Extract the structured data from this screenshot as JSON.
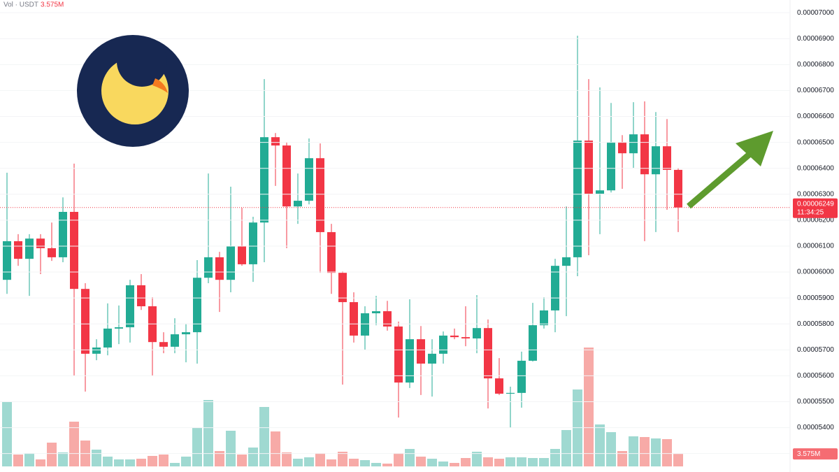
{
  "chart_data": {
    "type": "candlestick",
    "volume_title": "Vol · USDT",
    "up_color": "#22ab94",
    "down_color": "#f23645",
    "volume_up_color": "#9fd9d1",
    "volume_down_color": "#f7aaa7",
    "open": [
      5.97e-05,
      6.119e-05,
      6.051e-05,
      6.129e-05,
      6.092e-05,
      6.057e-05,
      6.232e-05,
      5.935e-05,
      5.685e-05,
      5.709e-05,
      5.782e-05,
      5.787e-05,
      5.949e-05,
      5.868e-05,
      5.73e-05,
      5.712e-05,
      5.76e-05,
      5.768e-05,
      5.978e-05,
      6.057e-05,
      5.97e-05,
      6.1e-05,
      6.03e-05,
      6.191e-05,
      6.52e-05,
      6.488e-05,
      6.253e-05,
      6.275e-05,
      6.439e-05,
      6.154e-05,
      5.997e-05,
      5.884e-05,
      5.755e-05,
      5.841e-05,
      5.849e-05,
      5.79e-05,
      5.574e-05,
      5.741e-05,
      5.647e-05,
      5.685e-05,
      5.755e-05,
      5.749e-05,
      5.744e-05,
      5.784e-05,
      5.59e-05,
      5.531e-05,
      5.534e-05,
      5.658e-05,
      5.795e-05,
      5.852e-05,
      6.024e-05,
      6.057e-05,
      6.507e-05,
      6.302e-05,
      6.315e-05,
      6.501e-05,
      6.458e-05,
      6.531e-05,
      6.377e-05,
      6.485e-05,
      6.394e-05
    ],
    "close": [
      6.119e-05,
      6.051e-05,
      6.129e-05,
      6.092e-05,
      6.057e-05,
      6.232e-05,
      5.935e-05,
      5.685e-05,
      5.709e-05,
      5.782e-05,
      5.787e-05,
      5.949e-05,
      5.868e-05,
      5.73e-05,
      5.712e-05,
      5.76e-05,
      5.768e-05,
      5.978e-05,
      6.057e-05,
      5.97e-05,
      6.1e-05,
      6.03e-05,
      6.191e-05,
      6.52e-05,
      6.488e-05,
      6.253e-05,
      6.275e-05,
      6.439e-05,
      6.154e-05,
      5.997e-05,
      5.884e-05,
      5.755e-05,
      5.841e-05,
      5.849e-05,
      5.79e-05,
      5.574e-05,
      5.741e-05,
      5.647e-05,
      5.685e-05,
      5.755e-05,
      5.749e-05,
      5.744e-05,
      5.784e-05,
      5.59e-05,
      5.531e-05,
      5.534e-05,
      5.658e-05,
      5.795e-05,
      5.852e-05,
      6.024e-05,
      6.057e-05,
      6.507e-05,
      6.302e-05,
      6.315e-05,
      6.501e-05,
      6.458e-05,
      6.531e-05,
      6.377e-05,
      6.485e-05,
      6.394e-05,
      6.249e-05
    ],
    "high": [
      6.383e-05,
      6.146e-05,
      6.146e-05,
      6.146e-05,
      6.191e-05,
      6.288e-05,
      6.418e-05,
      5.957e-05,
      5.741e-05,
      5.879e-05,
      5.871e-05,
      5.97e-05,
      5.992e-05,
      5.903e-05,
      5.768e-05,
      5.822e-05,
      5.801e-05,
      6.046e-05,
      6.38e-05,
      6.078e-05,
      6.329e-05,
      6.248e-05,
      6.213e-05,
      6.744e-05,
      6.536e-05,
      6.501e-05,
      6.38e-05,
      6.515e-05,
      6.496e-05,
      6.186e-05,
      6.003e-05,
      5.922e-05,
      5.868e-05,
      5.908e-05,
      5.889e-05,
      5.809e-05,
      5.895e-05,
      5.792e-05,
      5.741e-05,
      5.771e-05,
      5.782e-05,
      5.868e-05,
      5.911e-05,
      5.817e-05,
      5.668e-05,
      5.558e-05,
      5.693e-05,
      5.881e-05,
      5.903e-05,
      6.051e-05,
      6.253e-05,
      6.911e-05,
      6.744e-05,
      6.712e-05,
      6.652e-05,
      6.528e-05,
      6.655e-05,
      6.658e-05,
      6.617e-05,
      6.59e-05,
      6.402e-05
    ],
    "low": [
      5.916e-05,
      6.024e-05,
      5.908e-05,
      5.992e-05,
      6.043e-05,
      6.038e-05,
      5.601e-05,
      5.539e-05,
      5.66e-05,
      5.679e-05,
      5.722e-05,
      5.728e-05,
      5.854e-05,
      5.601e-05,
      5.687e-05,
      5.687e-05,
      5.652e-05,
      5.647e-05,
      5.957e-05,
      5.846e-05,
      5.922e-05,
      6.024e-05,
      5.962e-05,
      6.038e-05,
      6.332e-05,
      6.092e-05,
      6.186e-05,
      6.261e-05,
      5.997e-05,
      5.916e-05,
      5.566e-05,
      5.728e-05,
      5.701e-05,
      5.795e-05,
      5.774e-05,
      5.439e-05,
      5.553e-05,
      5.526e-05,
      5.52e-05,
      5.647e-05,
      5.741e-05,
      5.714e-05,
      5.687e-05,
      5.474e-05,
      5.526e-05,
      5.399e-05,
      5.477e-05,
      5.655e-05,
      5.782e-05,
      5.768e-05,
      5.83e-05,
      5.984e-05,
      6.065e-05,
      6.146e-05,
      6.307e-05,
      6.321e-05,
      6.402e-05,
      6.119e-05,
      6.154e-05,
      6.24e-05,
      6.154e-05
    ],
    "volume": {
      "values": [
        18400000,
        3400000,
        3800000,
        2000000,
        6800000,
        4000000,
        12800000,
        7400000,
        4800000,
        2800000,
        2000000,
        2000000,
        2200000,
        3000000,
        3400000,
        1000000,
        2800000,
        11000000,
        19000000,
        4400000,
        10200000,
        3400000,
        5400000,
        17000000,
        10000000,
        4000000,
        2200000,
        2600000,
        3800000,
        2000000,
        4200000,
        2200000,
        1800000,
        1000000,
        800000,
        3800000,
        5000000,
        2800000,
        2200000,
        1400000,
        1000000,
        2400000,
        4200000,
        2600000,
        2200000,
        2600000,
        2600000,
        2400000,
        2400000,
        5000000,
        10400000,
        22000000,
        34000000,
        12000000,
        9800000,
        4400000,
        8600000,
        8400000,
        8000000,
        7800000,
        3575000
      ],
      "value_labels": [
        null,
        null,
        null,
        null,
        null,
        null,
        null,
        null,
        null,
        null,
        null,
        null,
        null,
        null,
        null,
        null,
        null,
        null,
        null,
        null,
        null,
        null,
        null,
        null,
        null,
        null,
        null,
        null,
        null,
        null,
        null,
        null,
        null,
        null,
        null,
        null,
        null,
        null,
        null,
        null,
        null,
        null,
        null,
        null,
        null,
        null,
        null,
        null,
        null,
        null,
        null,
        null,
        null,
        null,
        null,
        null,
        null,
        null,
        null,
        null,
        "3.575M"
      ]
    },
    "last_price": 6.249e-05,
    "countdown": "11:34:25",
    "ylim": [
      5.229e-05,
      7.049e-05
    ],
    "yticks": [
      {
        "value": 7e-05,
        "label": "0.00007000"
      },
      {
        "value": 6.9e-05,
        "label": "0.00006900"
      },
      {
        "value": 6.8e-05,
        "label": "0.00006800"
      },
      {
        "value": 6.7e-05,
        "label": "0.00006700"
      },
      {
        "value": 6.6e-05,
        "label": "0.00006600"
      },
      {
        "value": 6.5e-05,
        "label": "0.00006500"
      },
      {
        "value": 6.4e-05,
        "label": "0.00006400"
      },
      {
        "value": 6.3e-05,
        "label": "0.00006300"
      },
      {
        "value": 6.2e-05,
        "label": "0.00006200"
      },
      {
        "value": 6.1e-05,
        "label": "0.00006100"
      },
      {
        "value": 6e-05,
        "label": "0.00006000"
      },
      {
        "value": 5.9e-05,
        "label": "0.00005900"
      },
      {
        "value": 5.8e-05,
        "label": "0.00005800"
      },
      {
        "value": 5.7e-05,
        "label": "0.00005700"
      },
      {
        "value": 5.6e-05,
        "label": "0.00005600"
      },
      {
        "value": 5.5e-05,
        "label": "0.00005500"
      },
      {
        "value": 5.4e-05,
        "label": "0.00005400"
      },
      {
        "value": 5.3e-05,
        "label": "0.00005300"
      }
    ]
  }
}
